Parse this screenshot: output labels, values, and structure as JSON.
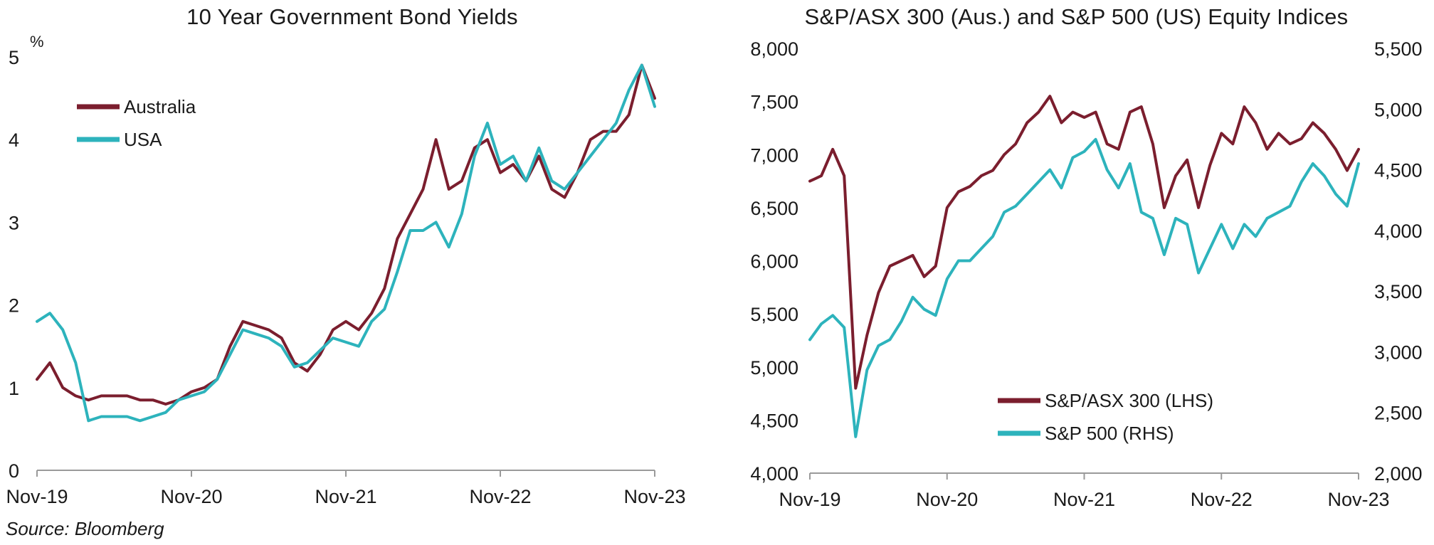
{
  "colors": {
    "australia": "#7B1E2E",
    "usa": "#2DB3BC",
    "axis": "#9a9a9a"
  },
  "source": "Source: Bloomberg",
  "chart_data": [
    {
      "type": "line",
      "title": "10 Year Government Bond Yields",
      "unit_label": "%",
      "xlabel": "",
      "ylabel": "",
      "x_tick_labels": [
        "Nov-19",
        "Nov-20",
        "Nov-21",
        "Nov-22",
        "Nov-23"
      ],
      "xlim": [
        "2019-11",
        "2023-11"
      ],
      "ylim": [
        0,
        5
      ],
      "y_ticks": [
        0,
        1,
        2,
        3,
        4,
        5
      ],
      "y_tick_labels": [
        "0",
        "1",
        "2",
        "3",
        "4",
        "5"
      ],
      "grid": false,
      "legend_position": "top-left",
      "series": [
        {
          "name": "Australia",
          "color": "#7B1E2E",
          "x": [
            "2019-11",
            "2019-12",
            "2020-01",
            "2020-02",
            "2020-03",
            "2020-04",
            "2020-05",
            "2020-06",
            "2020-07",
            "2020-08",
            "2020-09",
            "2020-10",
            "2020-11",
            "2020-12",
            "2021-01",
            "2021-02",
            "2021-03",
            "2021-04",
            "2021-05",
            "2021-06",
            "2021-07",
            "2021-08",
            "2021-09",
            "2021-10",
            "2021-11",
            "2021-12",
            "2022-01",
            "2022-02",
            "2022-03",
            "2022-04",
            "2022-05",
            "2022-06",
            "2022-07",
            "2022-08",
            "2022-09",
            "2022-10",
            "2022-11",
            "2022-12",
            "2023-01",
            "2023-02",
            "2023-03",
            "2023-04",
            "2023-05",
            "2023-06",
            "2023-07",
            "2023-08",
            "2023-09",
            "2023-10",
            "2023-11"
          ],
          "y": [
            1.1,
            1.3,
            1.0,
            0.9,
            0.85,
            0.9,
            0.9,
            0.9,
            0.85,
            0.85,
            0.8,
            0.85,
            0.95,
            1.0,
            1.1,
            1.5,
            1.8,
            1.75,
            1.7,
            1.6,
            1.3,
            1.2,
            1.4,
            1.7,
            1.8,
            1.7,
            1.9,
            2.2,
            2.8,
            3.1,
            3.4,
            4.0,
            3.4,
            3.5,
            3.9,
            4.0,
            3.6,
            3.7,
            3.5,
            3.8,
            3.4,
            3.3,
            3.6,
            4.0,
            4.1,
            4.1,
            4.3,
            4.9,
            4.5
          ]
        },
        {
          "name": "USA",
          "color": "#2DB3BC",
          "x": [
            "2019-11",
            "2019-12",
            "2020-01",
            "2020-02",
            "2020-03",
            "2020-04",
            "2020-05",
            "2020-06",
            "2020-07",
            "2020-08",
            "2020-09",
            "2020-10",
            "2020-11",
            "2020-12",
            "2021-01",
            "2021-02",
            "2021-03",
            "2021-04",
            "2021-05",
            "2021-06",
            "2021-07",
            "2021-08",
            "2021-09",
            "2021-10",
            "2021-11",
            "2021-12",
            "2022-01",
            "2022-02",
            "2022-03",
            "2022-04",
            "2022-05",
            "2022-06",
            "2022-07",
            "2022-08",
            "2022-09",
            "2022-10",
            "2022-11",
            "2022-12",
            "2023-01",
            "2023-02",
            "2023-03",
            "2023-04",
            "2023-05",
            "2023-06",
            "2023-07",
            "2023-08",
            "2023-09",
            "2023-10",
            "2023-11"
          ],
          "y": [
            1.8,
            1.9,
            1.7,
            1.3,
            0.6,
            0.65,
            0.65,
            0.65,
            0.6,
            0.65,
            0.7,
            0.85,
            0.9,
            0.95,
            1.1,
            1.4,
            1.7,
            1.65,
            1.6,
            1.5,
            1.25,
            1.3,
            1.45,
            1.6,
            1.55,
            1.5,
            1.8,
            1.95,
            2.4,
            2.9,
            2.9,
            3.0,
            2.7,
            3.1,
            3.8,
            4.2,
            3.7,
            3.8,
            3.5,
            3.9,
            3.5,
            3.4,
            3.6,
            3.8,
            4.0,
            4.2,
            4.6,
            4.9,
            4.4
          ]
        }
      ]
    },
    {
      "type": "line",
      "title": "S&P/ASX 300 (Aus.) and S&P 500 (US) Equity Indices",
      "xlabel": "",
      "ylabel": "",
      "x_tick_labels": [
        "Nov-19",
        "Nov-20",
        "Nov-21",
        "Nov-22",
        "Nov-23"
      ],
      "xlim": [
        "2019-11",
        "2023-11"
      ],
      "ylim_left": [
        4000,
        8000
      ],
      "ylim_right": [
        2000,
        5500
      ],
      "y_ticks_left": [
        4000,
        4500,
        5000,
        5500,
        6000,
        6500,
        7000,
        7500,
        8000
      ],
      "y_tick_labels_left": [
        "4,000",
        "4,500",
        "5,000",
        "5,500",
        "6,000",
        "6,500",
        "7,000",
        "7,500",
        "8,000"
      ],
      "y_ticks_right": [
        2000,
        2500,
        3000,
        3500,
        4000,
        4500,
        5000,
        5500
      ],
      "y_tick_labels_right": [
        "2,000",
        "2,500",
        "3,000",
        "3,500",
        "4,000",
        "4,500",
        "5,000",
        "5,500"
      ],
      "grid": false,
      "legend_position": "bottom-right",
      "series": [
        {
          "name": "S&P/ASX 300 (LHS)",
          "axis": "left",
          "color": "#7B1E2E",
          "x": [
            "2019-11",
            "2019-12",
            "2020-01",
            "2020-02",
            "2020-03",
            "2020-04",
            "2020-05",
            "2020-06",
            "2020-07",
            "2020-08",
            "2020-09",
            "2020-10",
            "2020-11",
            "2020-12",
            "2021-01",
            "2021-02",
            "2021-03",
            "2021-04",
            "2021-05",
            "2021-06",
            "2021-07",
            "2021-08",
            "2021-09",
            "2021-10",
            "2021-11",
            "2021-12",
            "2022-01",
            "2022-02",
            "2022-03",
            "2022-04",
            "2022-05",
            "2022-06",
            "2022-07",
            "2022-08",
            "2022-09",
            "2022-10",
            "2022-11",
            "2022-12",
            "2023-01",
            "2023-02",
            "2023-03",
            "2023-04",
            "2023-05",
            "2023-06",
            "2023-07",
            "2023-08",
            "2023-09",
            "2023-10",
            "2023-11"
          ],
          "y": [
            6750,
            6800,
            7050,
            6800,
            4800,
            5300,
            5700,
            5950,
            6000,
            6050,
            5850,
            5950,
            6500,
            6650,
            6700,
            6800,
            6850,
            7000,
            7100,
            7300,
            7400,
            7550,
            7300,
            7400,
            7350,
            7400,
            7100,
            7050,
            7400,
            7450,
            7100,
            6500,
            6800,
            6950,
            6500,
            6900,
            7200,
            7100,
            7450,
            7300,
            7050,
            7200,
            7100,
            7150,
            7300,
            7200,
            7050,
            6850,
            7050
          ]
        },
        {
          "name": "S&P 500 (RHS)",
          "axis": "right",
          "color": "#2DB3BC",
          "x": [
            "2019-11",
            "2019-12",
            "2020-01",
            "2020-02",
            "2020-03",
            "2020-04",
            "2020-05",
            "2020-06",
            "2020-07",
            "2020-08",
            "2020-09",
            "2020-10",
            "2020-11",
            "2020-12",
            "2021-01",
            "2021-02",
            "2021-03",
            "2021-04",
            "2021-05",
            "2021-06",
            "2021-07",
            "2021-08",
            "2021-09",
            "2021-10",
            "2021-11",
            "2021-12",
            "2022-01",
            "2022-02",
            "2022-03",
            "2022-04",
            "2022-05",
            "2022-06",
            "2022-07",
            "2022-08",
            "2022-09",
            "2022-10",
            "2022-11",
            "2022-12",
            "2023-01",
            "2023-02",
            "2023-03",
            "2023-04",
            "2023-05",
            "2023-06",
            "2023-07",
            "2023-08",
            "2023-09",
            "2023-10",
            "2023-11"
          ],
          "y": [
            3100,
            3230,
            3300,
            3200,
            2300,
            2850,
            3050,
            3100,
            3250,
            3450,
            3350,
            3300,
            3600,
            3750,
            3750,
            3850,
            3950,
            4150,
            4200,
            4300,
            4400,
            4500,
            4350,
            4600,
            4650,
            4750,
            4500,
            4350,
            4550,
            4150,
            4100,
            3800,
            4100,
            4050,
            3650,
            3850,
            4050,
            3850,
            4050,
            3950,
            4100,
            4150,
            4200,
            4400,
            4550,
            4450,
            4300,
            4200,
            4550
          ]
        }
      ]
    }
  ]
}
